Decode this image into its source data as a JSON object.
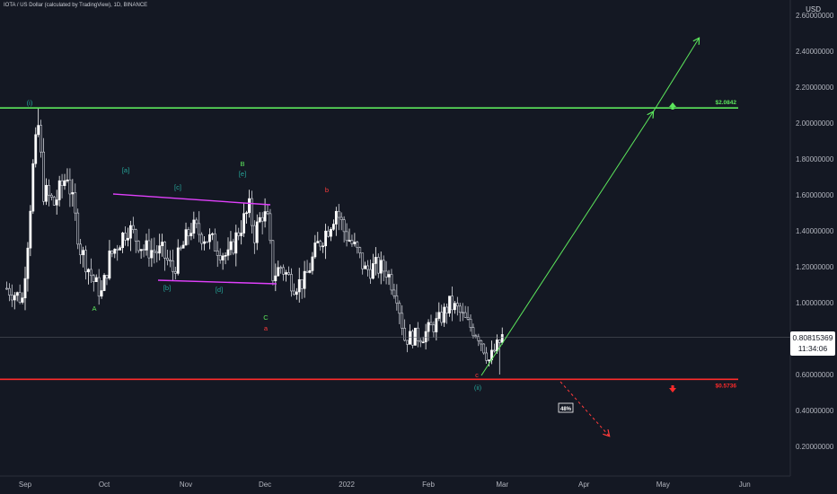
{
  "chart_data": {
    "type": "candlestick",
    "symbol": "IOTA / US Dollar (calculated by TradingView), 1D, BINANCE",
    "currency": "USD",
    "y_axis": {
      "min": 0.1,
      "max": 2.75,
      "ticks": [
        "2.60000000",
        "2.40000000",
        "2.20000000",
        "2.00000000",
        "1.80000000",
        "1.60000000",
        "1.40000000",
        "1.20000000",
        "1.00000000",
        "0.80000000",
        "0.60000000",
        "0.40000000",
        "0.20000000"
      ]
    },
    "x_axis": {
      "ticks": [
        "Sep",
        "Oct",
        "Nov",
        "Dec",
        "2022",
        "Feb",
        "Mar",
        "Apr",
        "May",
        "Jun"
      ]
    },
    "last_price": "0.80815369",
    "countdown": "11:34:06",
    "levels": [
      {
        "label": "$2.0842",
        "value": 2.0842,
        "color": "#5ce65c"
      },
      {
        "label": "$0.5736",
        "value": 0.5736,
        "color": "#ff2b2b"
      }
    ],
    "forecast_percent": "48%",
    "wave_labels": [
      {
        "text": "(i)",
        "color": "#26a69a"
      },
      {
        "text": "[a]",
        "color": "#26a69a"
      },
      {
        "text": "[b]",
        "color": "#26a69a"
      },
      {
        "text": "[c]",
        "color": "#26a69a"
      },
      {
        "text": "[d]",
        "color": "#26a69a"
      },
      {
        "text": "[e]",
        "color": "#26a69a"
      },
      {
        "text": "A",
        "color": "#5ce65c"
      },
      {
        "text": "B",
        "color": "#5ce65c"
      },
      {
        "text": "C",
        "color": "#5ce65c"
      },
      {
        "text": "a",
        "color": "#ff3b3b"
      },
      {
        "text": "b",
        "color": "#ff3b3b"
      },
      {
        "text": "c",
        "color": "#ff3b3b"
      },
      {
        "text": "(ii)",
        "color": "#26a69a"
      }
    ],
    "price_path": [
      {
        "date": "2021-08-25",
        "price": 1.08
      },
      {
        "date": "2021-08-31",
        "price": 1.02
      },
      {
        "date": "2021-09-02",
        "price": 1.35
      },
      {
        "date": "2021-09-04",
        "price": 1.75
      },
      {
        "date": "2021-09-06",
        "price": 1.98
      },
      {
        "date": "2021-09-08",
        "price": 1.62
      },
      {
        "date": "2021-09-12",
        "price": 1.55
      },
      {
        "date": "2021-09-17",
        "price": 1.72
      },
      {
        "date": "2021-09-22",
        "price": 1.3
      },
      {
        "date": "2021-09-27",
        "price": 1.12
      },
      {
        "date": "2021-09-30",
        "price": 1.05
      },
      {
        "date": "2021-10-03",
        "price": 1.25
      },
      {
        "date": "2021-10-07",
        "price": 1.35
      },
      {
        "date": "2021-10-10",
        "price": 1.42
      },
      {
        "date": "2021-10-16",
        "price": 1.3
      },
      {
        "date": "2021-10-23",
        "price": 1.28
      },
      {
        "date": "2021-10-27",
        "price": 1.18
      },
      {
        "date": "2021-11-03",
        "price": 1.42
      },
      {
        "date": "2021-11-10",
        "price": 1.35
      },
      {
        "date": "2021-11-17",
        "price": 1.25
      },
      {
        "date": "2021-11-21",
        "price": 1.4
      },
      {
        "date": "2021-11-25",
        "price": 1.52
      },
      {
        "date": "2021-11-27",
        "price": 1.38
      },
      {
        "date": "2021-11-30",
        "price": 1.5
      },
      {
        "date": "2021-12-02",
        "price": 1.45
      },
      {
        "date": "2021-12-04",
        "price": 1.15
      },
      {
        "date": "2021-12-07",
        "price": 1.2
      },
      {
        "date": "2021-12-12",
        "price": 1.1
      },
      {
        "date": "2021-12-16",
        "price": 1.12
      },
      {
        "date": "2021-12-21",
        "price": 1.32
      },
      {
        "date": "2021-12-25",
        "price": 1.42
      },
      {
        "date": "2021-12-28",
        "price": 1.52
      },
      {
        "date": "2021-12-31",
        "price": 1.4
      },
      {
        "date": "2022-01-05",
        "price": 1.28
      },
      {
        "date": "2022-01-08",
        "price": 1.18
      },
      {
        "date": "2022-01-12",
        "price": 1.2
      },
      {
        "date": "2022-01-16",
        "price": 1.18
      },
      {
        "date": "2022-01-20",
        "price": 1.05
      },
      {
        "date": "2022-01-23",
        "price": 0.8
      },
      {
        "date": "2022-01-30",
        "price": 0.82
      },
      {
        "date": "2022-02-05",
        "price": 0.9
      },
      {
        "date": "2022-02-09",
        "price": 0.99
      },
      {
        "date": "2022-02-12",
        "price": 0.96
      },
      {
        "date": "2022-02-16",
        "price": 0.88
      },
      {
        "date": "2022-02-20",
        "price": 0.82
      },
      {
        "date": "2022-02-24",
        "price": 0.68
      },
      {
        "date": "2022-02-28",
        "price": 0.78
      },
      {
        "date": "2022-03-01",
        "price": 0.81
      }
    ]
  }
}
